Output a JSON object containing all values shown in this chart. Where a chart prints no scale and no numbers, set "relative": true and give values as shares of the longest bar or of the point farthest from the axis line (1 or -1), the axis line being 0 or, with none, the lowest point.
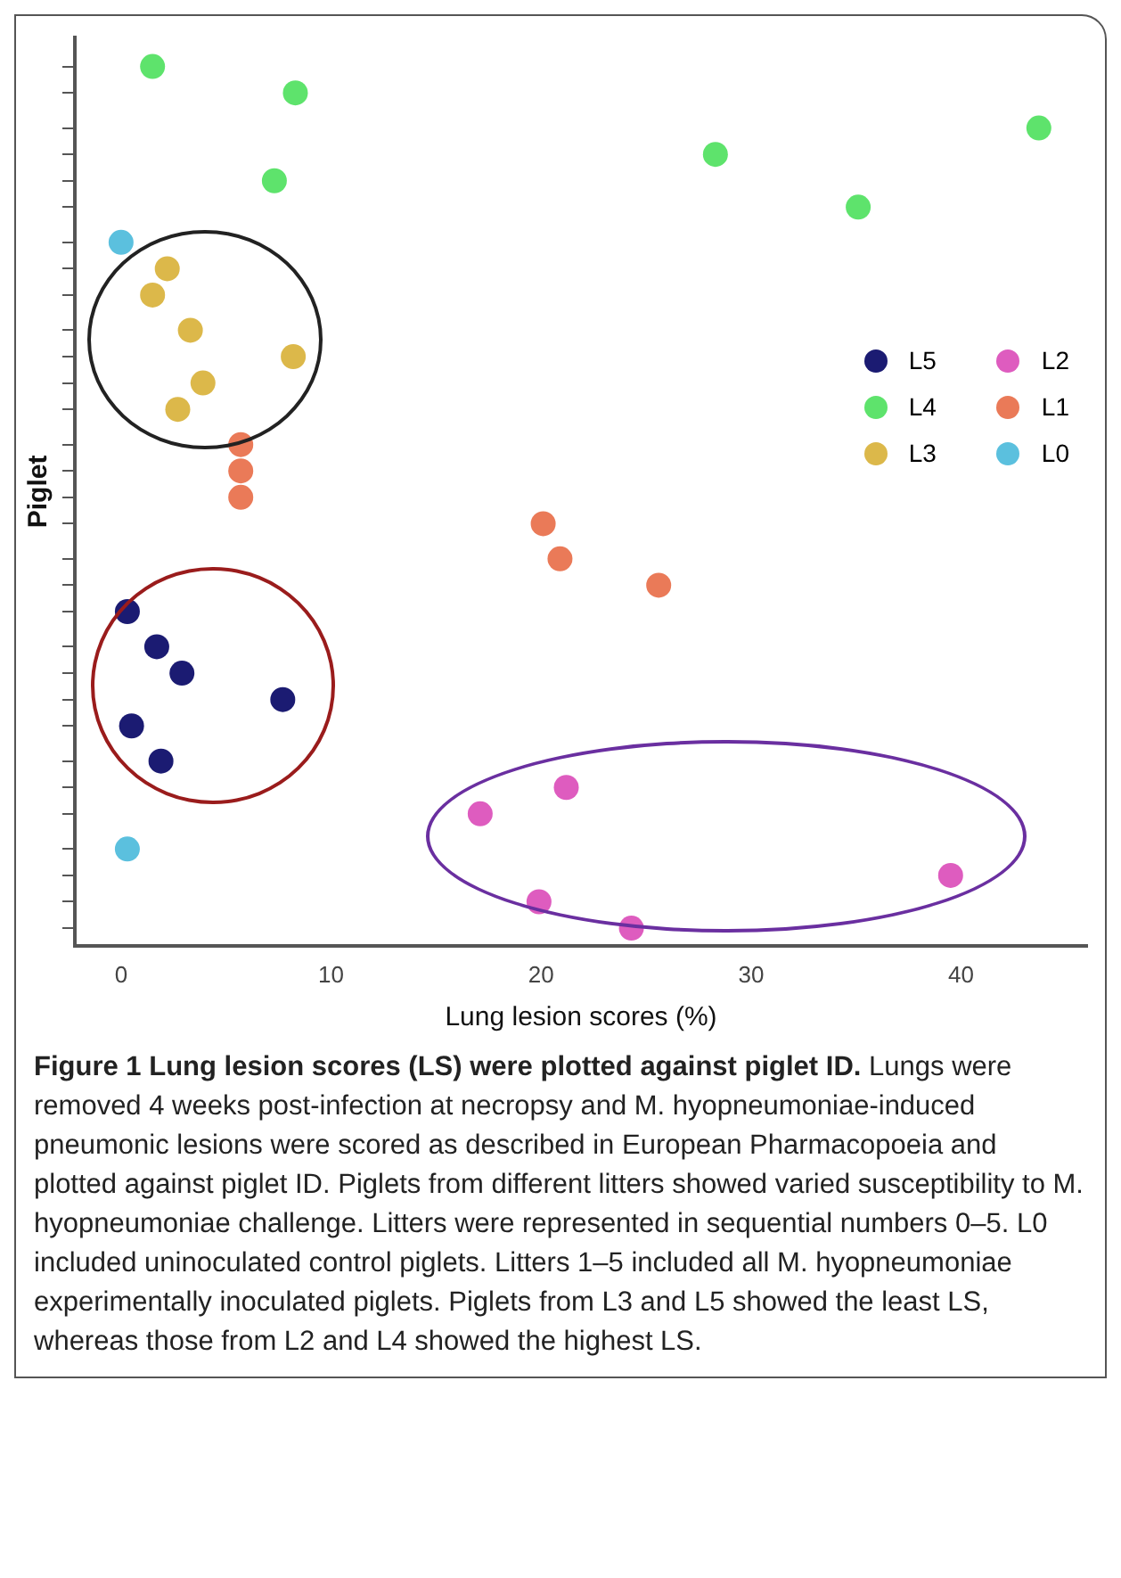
{
  "chart_data": {
    "type": "scatter",
    "xlabel": "Lung lesion scores (%)",
    "ylabel": "Piglet",
    "xlim": [
      -2.2,
      46
    ],
    "xticks": [
      0,
      10,
      20,
      30,
      40
    ],
    "relative": true,
    "tick_labels": "x",
    "grid": false,
    "marker": "circle",
    "legend": "right",
    "series": [
      {
        "name": "L5",
        "color": "#1b1b72",
        "x": [
          0.3,
          1.7,
          2.9,
          7.7,
          0.5,
          1.9
        ],
        "values": [
          0.38,
          0.34,
          0.31,
          0.28,
          0.25,
          0.21
        ]
      },
      {
        "name": "L4",
        "color": "#5ee36c",
        "x": [
          1.5,
          8.3,
          43.7,
          28.3,
          7.3,
          35.1
        ],
        "values": [
          1,
          0.97,
          0.93,
          0.9,
          0.87,
          0.84
        ]
      },
      {
        "name": "L3",
        "color": "#dcb84a",
        "x": [
          2.2,
          1.5,
          3.3,
          8.2,
          3.9,
          2.7
        ],
        "values": [
          0.77,
          0.74,
          0.7,
          0.67,
          0.64,
          0.61
        ]
      },
      {
        "name": "L2",
        "color": "#de5cbf",
        "x": [
          21.2,
          17.1,
          39.5,
          19.9,
          24.3
        ],
        "values": [
          0.18,
          0.15,
          0.08,
          0.05,
          0.02
        ]
      },
      {
        "name": "L1",
        "color": "#ea7a58",
        "x": [
          5.7,
          5.7,
          5.7,
          20.1,
          20.9,
          25.6
        ],
        "values": [
          0.57,
          0.54,
          0.51,
          0.48,
          0.44,
          0.41
        ]
      },
      {
        "name": "L0",
        "color": "#5bc0de",
        "x": [
          0.0,
          0.3
        ],
        "values": [
          0.8,
          0.11
        ]
      }
    ],
    "title": "Figure 1  Lung lesion scores (LS) were plotted against piglet ID.",
    "annotations": [
      "Lungs were removed 4 weeks post-infection at necropsy and M. hyopneumoniae-induced pneumonic lesions were scored as described in European Pharmacopoeia and plotted against piglet ID. Piglets from different litters showed varied susceptibility to M. hyopneumoniae challenge. Litters were represented in sequential numbers 0–5. L0 included uninoculated control piglets. Litters 1–5 included all M. hyopneumoniae experimentally inoculated piglets. Piglets from L3 and L5 showed the least LS, whereas those from L2 and L4 showed the highest LS."
    ]
  }
}
